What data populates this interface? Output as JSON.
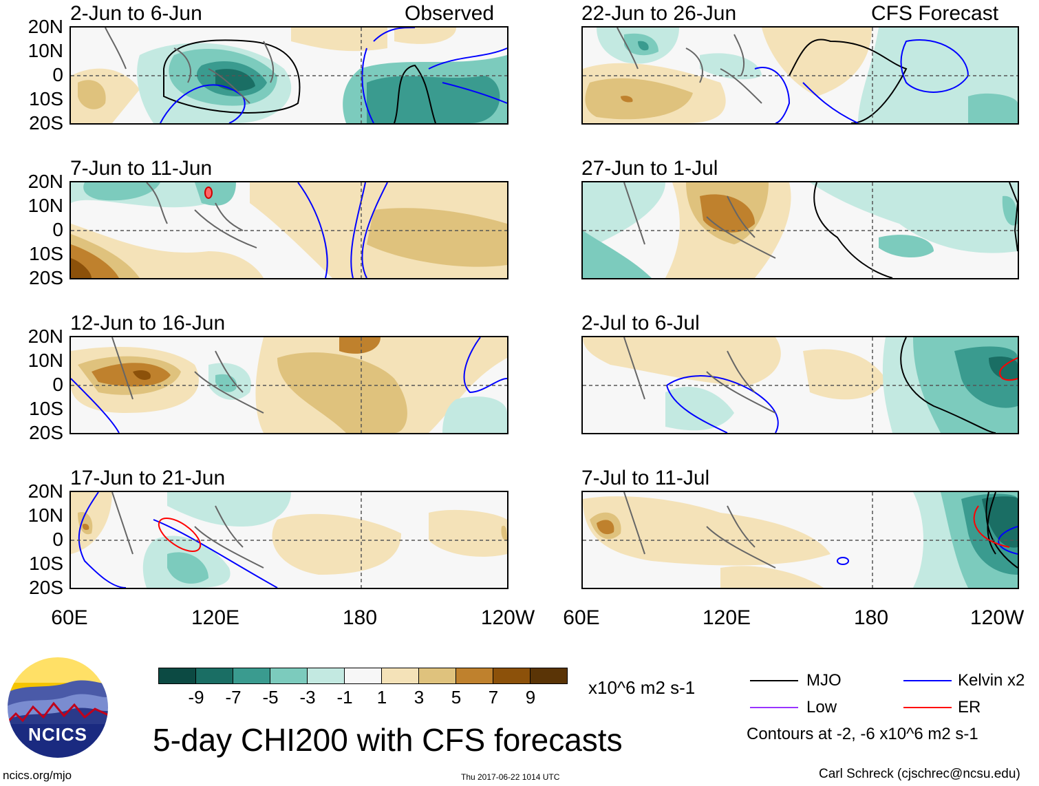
{
  "title": "5-day CHI200 with CFS forecasts",
  "source_url": "ncics.org/mjo",
  "timestamp": "Thu 2017-06-22 1014 UTC",
  "credit": "Carl Schreck (cjschrec@ncsu.edu)",
  "logo_text": "NCICS",
  "observed_label": "Observed",
  "forecast_label": "CFS Forecast",
  "lat_labels": [
    "20N",
    "10N",
    "0",
    "10S",
    "20S"
  ],
  "lon_labels": [
    "60E",
    "120E",
    "180",
    "120W"
  ],
  "panels_left": [
    {
      "dates": "2-Jun to 6-Jun"
    },
    {
      "dates": "7-Jun to 11-Jun"
    },
    {
      "dates": "12-Jun to 16-Jun"
    },
    {
      "dates": "17-Jun to 21-Jun"
    }
  ],
  "panels_right": [
    {
      "dates": "22-Jun to 26-Jun"
    },
    {
      "dates": "27-Jun to 1-Jul"
    },
    {
      "dates": "2-Jul to 6-Jul"
    },
    {
      "dates": "7-Jul to 11-Jul"
    }
  ],
  "colorbar": {
    "ticks": [
      "-9",
      "-7",
      "-5",
      "-3",
      "-1",
      "1",
      "3",
      "5",
      "7",
      "9"
    ],
    "units": "x10^6 m2 s-1",
    "colors": [
      "#0c4a43",
      "#1a6e64",
      "#3a9b8f",
      "#7ccbbd",
      "#c3e9e1",
      "#f7f7f7",
      "#f4e2b8",
      "#dfc27d",
      "#bf812d",
      "#8c510a",
      "#5a3406"
    ]
  },
  "legend": {
    "mjo": "MJO",
    "kelvin": "Kelvin x2",
    "low": "Low",
    "er": "ER",
    "contours_note": "Contours at -2, -6 x10^6 m2 s-1",
    "colors": {
      "mjo": "#000000",
      "kelvin": "#0000ff",
      "low": "#9933ff",
      "er": "#ff0000"
    }
  }
}
